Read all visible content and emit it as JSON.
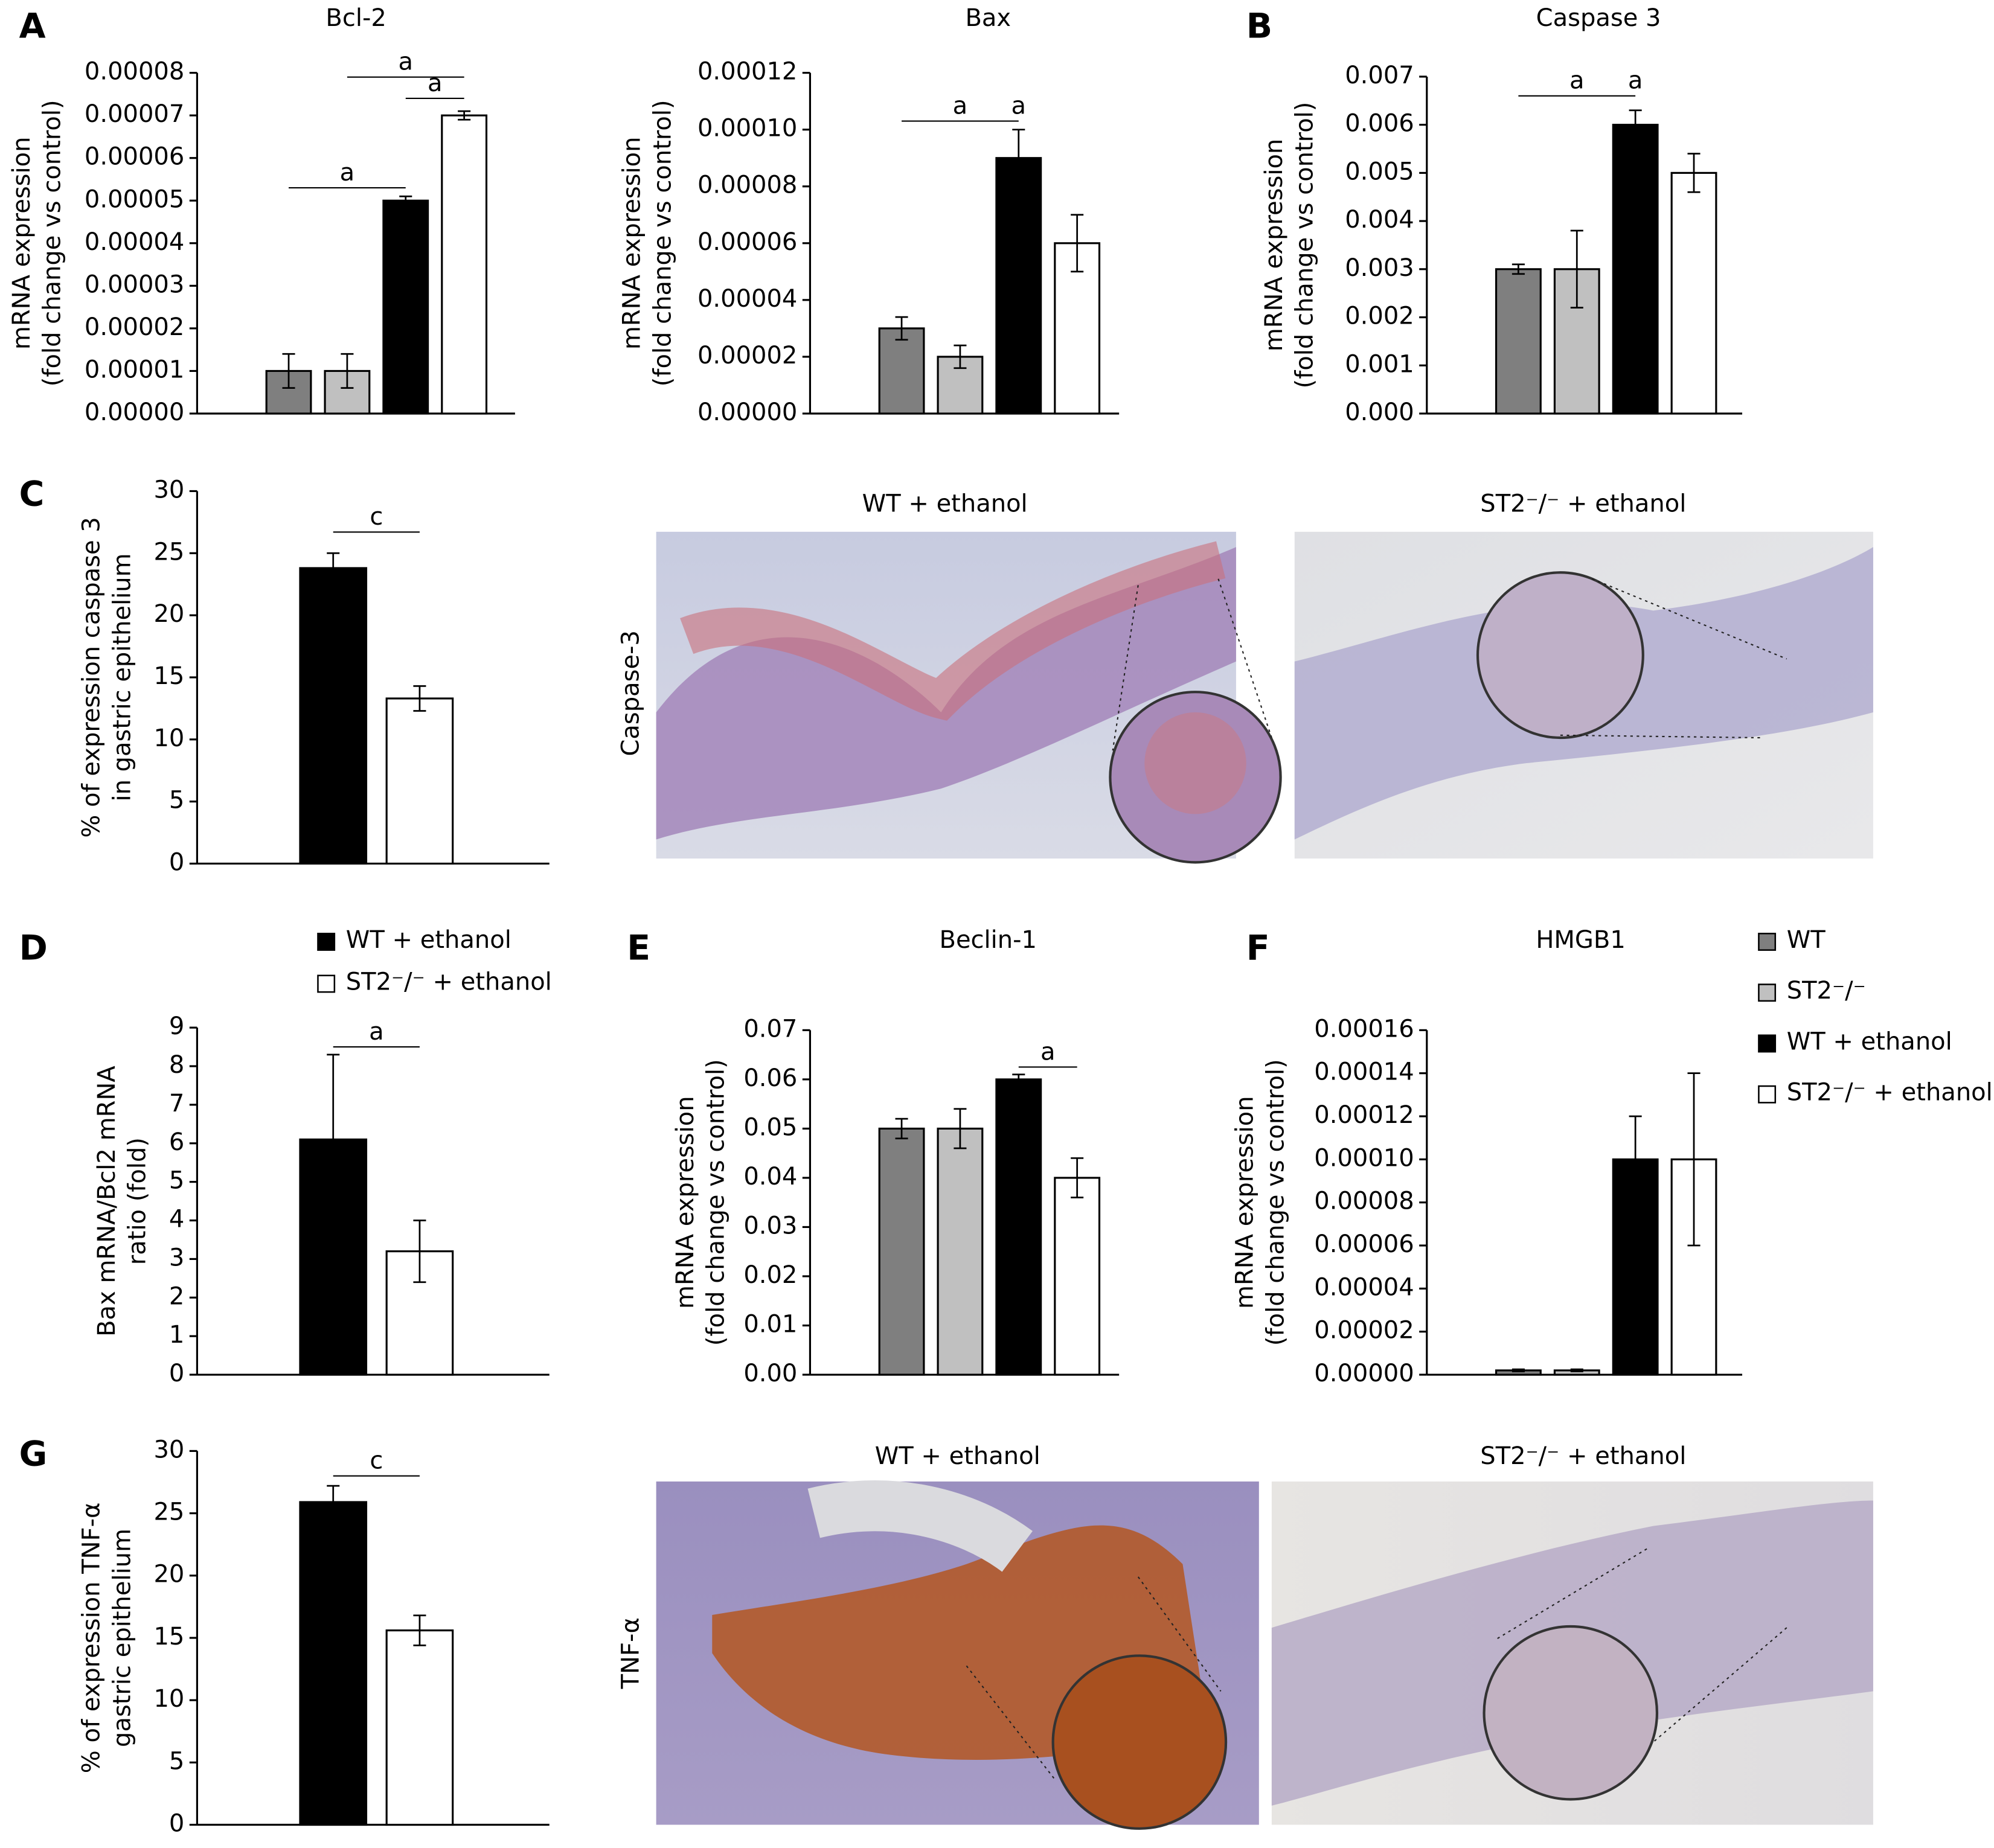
{
  "chart_data": [
    {
      "type": "bar",
      "panel": "A",
      "title": "Bcl-2",
      "y_label": [
        "mRNA expression",
        "(fold change vs control)"
      ],
      "values": [
        1e-05,
        1e-05,
        5e-05,
        7e-05
      ],
      "errors": [
        4e-06,
        4e-06,
        1e-06,
        1e-06
      ],
      "colors": [
        "#7f7f7f",
        "#c0c0c0",
        "#000000",
        "#ffffff"
      ],
      "ylim": [
        0,
        8e-05
      ],
      "yticks": [
        {
          "value": 0,
          "label": "0.00000"
        },
        {
          "value": 1e-05,
          "label": "0.00001"
        },
        {
          "value": 2e-05,
          "label": "0.00002"
        },
        {
          "value": 3e-05,
          "label": "0.00003"
        },
        {
          "value": 4e-05,
          "label": "0.00004"
        },
        {
          "value": 5e-05,
          "label": "0.00005"
        },
        {
          "value": 6e-05,
          "label": "0.00006"
        },
        {
          "value": 7e-05,
          "label": "0.00007"
        },
        {
          "value": 8e-05,
          "label": "0.00008"
        }
      ],
      "annotations": [
        {
          "text": "a",
          "from": 0,
          "to": 2,
          "y": 5.3e-05
        },
        {
          "text": "a",
          "from": 1,
          "to": 3,
          "y": 7.9e-05
        },
        {
          "text": "a",
          "from": 2,
          "to": 3,
          "y": 7.4e-05
        }
      ]
    },
    {
      "type": "bar",
      "title": "Bax",
      "y_label": [
        "mRNA expression",
        "(fold change vs control)"
      ],
      "values": [
        3e-05,
        2e-05,
        9e-05,
        6e-05
      ],
      "errors": [
        4e-06,
        4e-06,
        1e-05,
        1e-05
      ],
      "colors": [
        "#7f7f7f",
        "#c0c0c0",
        "#000000",
        "#ffffff"
      ],
      "ylim": [
        0,
        0.00012
      ],
      "yticks": [
        {
          "value": 0,
          "label": "0.00000"
        },
        {
          "value": 2e-05,
          "label": "0.00002"
        },
        {
          "value": 4e-05,
          "label": "0.00004"
        },
        {
          "value": 6e-05,
          "label": "0.00006"
        },
        {
          "value": 8e-05,
          "label": "0.00008"
        },
        {
          "value": 0.0001,
          "label": "0.00010"
        },
        {
          "value": 0.00012,
          "label": "0.00012"
        }
      ],
      "annotations": [
        {
          "text": "a",
          "from": 0,
          "to": 2,
          "y": 0.000103
        },
        {
          "text": "a",
          "from": 2,
          "to": 2,
          "y": 0.000103
        }
      ]
    },
    {
      "type": "bar",
      "panel": "B",
      "title": "Caspase 3",
      "y_label": [
        "mRNA expression",
        "(fold change vs control)"
      ],
      "values": [
        0.003,
        0.003,
        0.006,
        0.005
      ],
      "errors": [
        0.0001,
        0.0008,
        0.0003,
        0.0004
      ],
      "colors": [
        "#7f7f7f",
        "#c0c0c0",
        "#000000",
        "#ffffff"
      ],
      "ylim": [
        0,
        0.007
      ],
      "yticks": [
        {
          "value": 0,
          "label": "0.000"
        },
        {
          "value": 0.001,
          "label": "0.001"
        },
        {
          "value": 0.002,
          "label": "0.002"
        },
        {
          "value": 0.003,
          "label": "0.003"
        },
        {
          "value": 0.004,
          "label": "0.004"
        },
        {
          "value": 0.005,
          "label": "0.005"
        },
        {
          "value": 0.006,
          "label": "0.006"
        },
        {
          "value": 0.007,
          "label": "0.007"
        }
      ],
      "annotations": [
        {
          "text": "a",
          "from": 0,
          "to": 2,
          "y": 0.0066
        },
        {
          "text": "a",
          "from": 2,
          "to": 2,
          "y": 0.0066
        }
      ]
    },
    {
      "type": "bar",
      "panel": "C",
      "y_label": [
        "% of expression caspase 3",
        "in gastric epithelium"
      ],
      "values": [
        23.8,
        13.3
      ],
      "errors": [
        1.2,
        1.0
      ],
      "colors": [
        "#000000",
        "#ffffff"
      ],
      "ylim": [
        0,
        30
      ],
      "yticks": [
        0,
        5,
        10,
        15,
        20,
        25,
        30
      ],
      "annotations": [
        {
          "text": "c",
          "from": 0,
          "to": 1,
          "y": 26.7
        }
      ]
    },
    {
      "type": "bar",
      "panel": "D",
      "y_label": [
        "Bax mRNA/Bcl2 mRNA",
        "ratio (fold)"
      ],
      "values": [
        6.1,
        3.2
      ],
      "errors": [
        2.2,
        0.8
      ],
      "colors": [
        "#000000",
        "#ffffff"
      ],
      "ylim": [
        0,
        9
      ],
      "yticks": [
        0,
        1,
        2,
        3,
        4,
        5,
        6,
        7,
        8,
        9
      ],
      "annotations": [
        {
          "text": "a",
          "from": 0,
          "to": 1,
          "y": 8.5
        }
      ]
    },
    {
      "type": "bar",
      "panel": "E",
      "title": "Beclin-1",
      "y_label": [
        "mRNA expression",
        "(fold change vs control)"
      ],
      "values": [
        0.05,
        0.05,
        0.06,
        0.04
      ],
      "errors": [
        0.002,
        0.004,
        0.001,
        0.004
      ],
      "colors": [
        "#7f7f7f",
        "#c0c0c0",
        "#000000",
        "#ffffff"
      ],
      "ylim": [
        0,
        0.07
      ],
      "yticks": [
        {
          "value": 0,
          "label": "0.00"
        },
        {
          "value": 0.01,
          "label": "0.01"
        },
        {
          "value": 0.02,
          "label": "0.02"
        },
        {
          "value": 0.03,
          "label": "0.03"
        },
        {
          "value": 0.04,
          "label": "0.04"
        },
        {
          "value": 0.05,
          "label": "0.05"
        },
        {
          "value": 0.06,
          "label": "0.06"
        },
        {
          "value": 0.07,
          "label": "0.07"
        }
      ],
      "annotations": [
        {
          "text": "a",
          "from": 2,
          "to": 3,
          "y": 0.0625
        }
      ]
    },
    {
      "type": "bar",
      "panel": "F",
      "title": "HMGB1",
      "y_label": [
        "mRNA expression",
        "(fold change vs control)"
      ],
      "values": [
        2e-06,
        2e-06,
        0.0001,
        0.0001
      ],
      "errors": [
        5e-07,
        5e-07,
        2e-05,
        4e-05
      ],
      "colors": [
        "#7f7f7f",
        "#c0c0c0",
        "#000000",
        "#ffffff"
      ],
      "ylim": [
        0,
        0.00016
      ],
      "yticks": [
        {
          "value": 0,
          "label": "0.00000"
        },
        {
          "value": 2e-05,
          "label": "0.00002"
        },
        {
          "value": 4e-05,
          "label": "0.00004"
        },
        {
          "value": 6e-05,
          "label": "0.00006"
        },
        {
          "value": 8e-05,
          "label": "0.00008"
        },
        {
          "value": 0.0001,
          "label": "0.00010"
        },
        {
          "value": 0.00012,
          "label": "0.00012"
        },
        {
          "value": 0.00014,
          "label": "0.00014"
        },
        {
          "value": 0.00016,
          "label": "0.00016"
        }
      ],
      "annotations": []
    },
    {
      "type": "bar",
      "panel": "G",
      "y_label": [
        "% of expression TNF-α",
        "gastric epithelium"
      ],
      "values": [
        25.9,
        15.6
      ],
      "errors": [
        1.3,
        1.2
      ],
      "colors": [
        "#000000",
        "#ffffff"
      ],
      "ylim": [
        0,
        30
      ],
      "yticks": [
        0,
        5,
        10,
        15,
        20,
        25,
        30
      ],
      "annotations": [
        {
          "text": "c",
          "from": 0,
          "to": 1,
          "y": 28
        }
      ]
    }
  ],
  "legends": [
    {
      "entries": [
        {
          "name": "WT + ethanol",
          "color": "#000000"
        },
        {
          "name": "ST2⁻/⁻ + ethanol",
          "color": "#ffffff"
        }
      ]
    },
    {
      "entries": [
        {
          "name": "WT",
          "color": "#7f7f7f"
        },
        {
          "name": "ST2⁻/⁻",
          "color": "#c0c0c0"
        },
        {
          "name": "WT + ethanol",
          "color": "#000000"
        },
        {
          "name": "ST2⁻/⁻ + ethanol",
          "color": "#ffffff"
        }
      ]
    }
  ],
  "micrographs": [
    {
      "row_label": "Caspase-3",
      "images": [
        {
          "title": "WT + ethanol"
        },
        {
          "title": "ST2⁻/⁻ + ethanol"
        }
      ]
    },
    {
      "row_label": "TNF-α",
      "images": [
        {
          "title": "WT + ethanol"
        },
        {
          "title": "ST2⁻/⁻ + ethanol"
        }
      ]
    }
  ]
}
